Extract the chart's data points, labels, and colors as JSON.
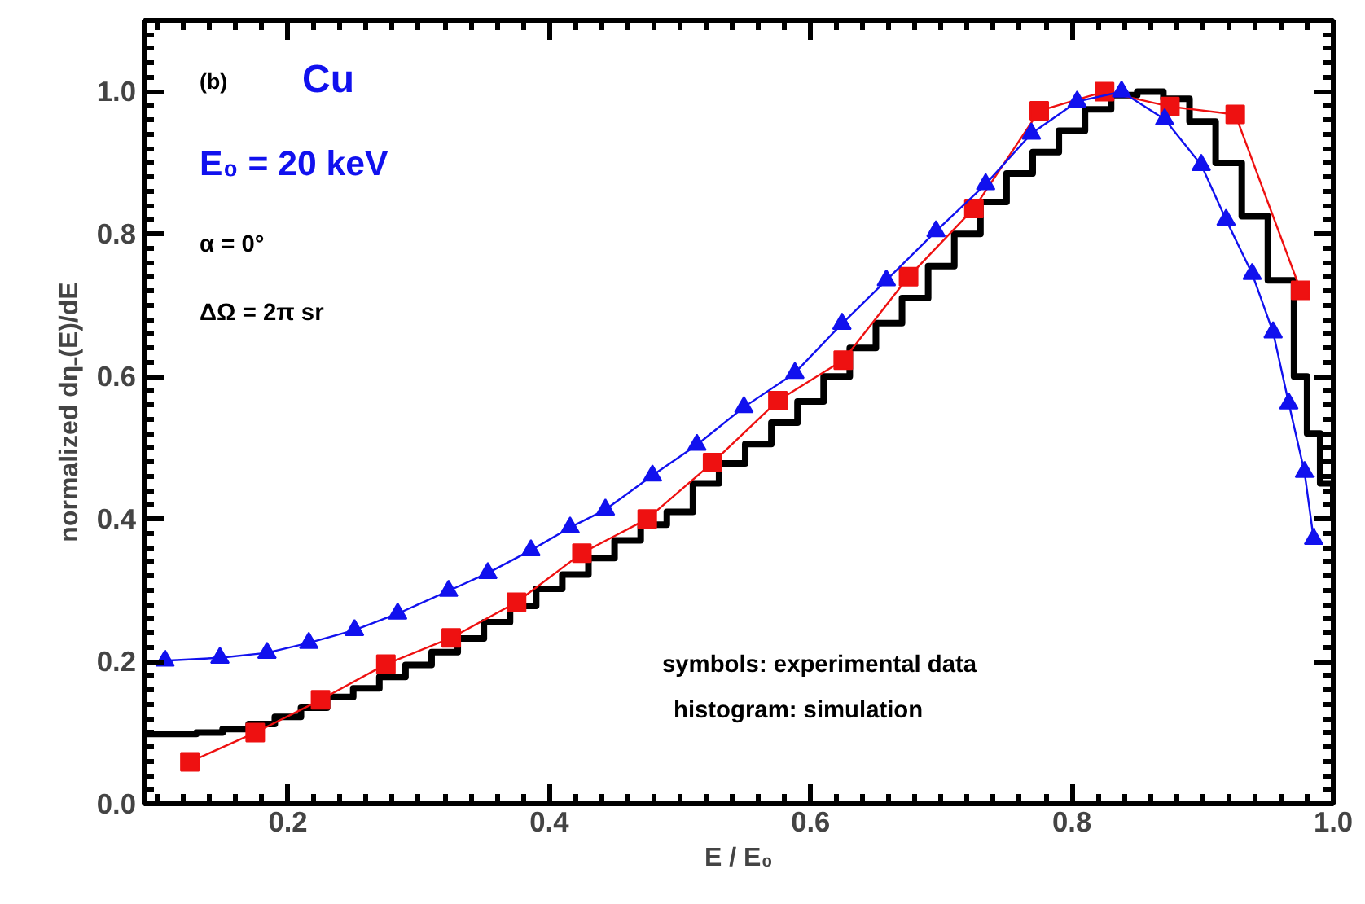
{
  "chart_data": {
    "type": "line",
    "xlabel": "E / E₀",
    "ylabel": "normalized dη₋(E)/dE",
    "xlim": [
      0.09,
      1.0
    ],
    "ylim": [
      0,
      1.1
    ],
    "xticks": [
      0.2,
      0.4,
      0.6,
      0.8,
      {
        "value": 1,
        "label": "1.0"
      }
    ],
    "yticks": [
      {
        "value": 0,
        "label": "0.0"
      },
      0.2,
      0.4,
      0.6,
      0.8,
      {
        "value": 1,
        "label": "1.0"
      }
    ],
    "grid": false,
    "annotations": [
      "(b)",
      "Cu",
      "E₀ = 20 keV",
      "α = 0°",
      "ΔΩ = 2π sr",
      "symbols: experimental data",
      "histogram: simulation"
    ],
    "series": [
      {
        "type": "step",
        "color": "#000000",
        "marker": "none",
        "x": [
          0.09,
          0.11,
          0.13,
          0.15,
          0.17,
          0.19,
          0.21,
          0.23,
          0.25,
          0.27,
          0.29,
          0.31,
          0.33,
          0.35,
          0.37,
          0.39,
          0.41,
          0.43,
          0.45,
          0.47,
          0.49,
          0.51,
          0.53,
          0.55,
          0.57,
          0.59,
          0.61,
          0.63,
          0.65,
          0.67,
          0.69,
          0.71,
          0.73,
          0.75,
          0.77,
          0.79,
          0.81,
          0.83,
          0.85,
          0.87,
          0.89,
          0.91,
          0.93,
          0.95,
          0.97,
          0.98,
          0.99,
          1.0
        ],
        "values": [
          0.098,
          0.098,
          0.1,
          0.105,
          0.112,
          0.122,
          0.135,
          0.15,
          0.162,
          0.178,
          0.195,
          0.213,
          0.232,
          0.255,
          0.278,
          0.302,
          0.322,
          0.345,
          0.37,
          0.392,
          0.41,
          0.45,
          0.478,
          0.505,
          0.535,
          0.565,
          0.6,
          0.64,
          0.675,
          0.71,
          0.755,
          0.8,
          0.845,
          0.885,
          0.915,
          0.945,
          0.975,
          0.995,
          1.0,
          0.99,
          0.958,
          0.9,
          0.825,
          0.735,
          0.6,
          0.52,
          0.45,
          0.4
        ]
      },
      {
        "color": "#ee1111",
        "marker": "square",
        "x": [
          0.125,
          0.175,
          0.225,
          0.275,
          0.325,
          0.375,
          0.425,
          0.475,
          0.525,
          0.575,
          0.625,
          0.675,
          0.725,
          0.775,
          0.825,
          0.875,
          0.925,
          0.975
        ],
        "values": [
          0.059,
          0.1,
          0.146,
          0.196,
          0.233,
          0.283,
          0.352,
          0.4,
          0.479,
          0.566,
          0.623,
          0.74,
          0.836,
          0.973,
          1.0,
          0.979,
          0.968,
          0.721
        ]
      },
      {
        "color": "#1111ee",
        "marker": "triangle",
        "x": [
          0.106,
          0.148,
          0.184,
          0.216,
          0.251,
          0.284,
          0.323,
          0.353,
          0.386,
          0.416,
          0.443,
          0.479,
          0.513,
          0.549,
          0.588,
          0.624,
          0.658,
          0.696,
          0.734,
          0.769,
          0.804,
          0.838,
          0.871,
          0.899,
          0.918,
          0.938,
          0.954,
          0.966,
          0.978,
          0.985
        ],
        "values": [
          0.201,
          0.205,
          0.212,
          0.226,
          0.244,
          0.267,
          0.299,
          0.324,
          0.356,
          0.388,
          0.413,
          0.461,
          0.504,
          0.557,
          0.605,
          0.674,
          0.735,
          0.804,
          0.87,
          0.941,
          0.986,
          1.0,
          0.961,
          0.897,
          0.82,
          0.744,
          0.662,
          0.562,
          0.466,
          0.372
        ]
      }
    ]
  }
}
